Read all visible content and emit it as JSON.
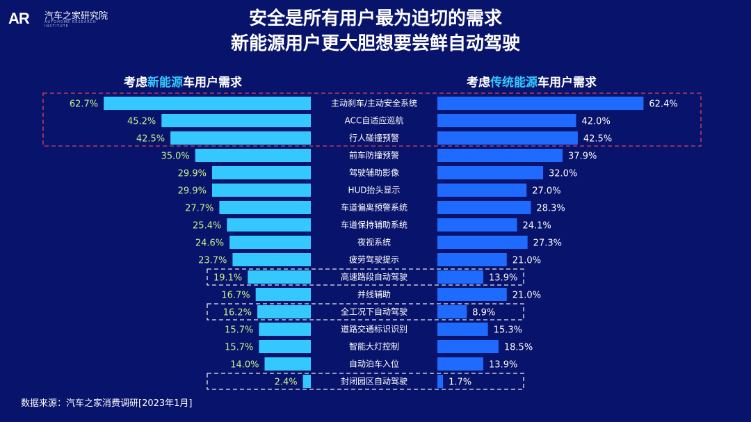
{
  "brand": {
    "mark": "AR",
    "name": "汽车之家研究院",
    "sub": "AUTOHOME RESEARCH INSTITUTE"
  },
  "title_line1": "安全是所有用户最为迫切的需求",
  "title_line2": "新能源用户更大胆想要尝鲜自动驾驶",
  "left_header": {
    "prefix": "考虑",
    "highlight": "新能源",
    "suffix": "车用户需求"
  },
  "right_header": {
    "prefix": "考虑",
    "highlight": "传统能源",
    "suffix": "车用户需求"
  },
  "source": "数据来源：汽车之家消费调研[2023年1月]",
  "colors": {
    "background": "#08136b",
    "left_bar": "#35c8ff",
    "right_bar": "#1f6bff",
    "left_label": "#c9f28a",
    "highlight_text": "#35c8ff",
    "red_box": "#e0405a",
    "white_box": "#e8e8e8"
  },
  "chart_data": {
    "type": "bar",
    "orientation": "horizontal-butterfly",
    "categories": [
      "主动刹车/主动安全系统",
      "ACC自适应巡航",
      "行人碰撞预警",
      "前车防撞预警",
      "驾驶辅助影像",
      "HUD抬头显示",
      "车道偏离预警系统",
      "车道保持辅助系统",
      "夜视系统",
      "疲劳驾驶提示",
      "高速路段自动驾驶",
      "并线辅助",
      "全工况下自动驾驶",
      "道路交通标识识别",
      "智能大灯控制",
      "自动泊车入位",
      "封闭园区自动驾驶"
    ],
    "series": [
      {
        "name": "考虑新能源车用户需求",
        "values": [
          62.7,
          45.2,
          42.5,
          35.0,
          29.9,
          29.9,
          27.7,
          25.4,
          24.6,
          23.7,
          19.1,
          16.7,
          16.2,
          15.7,
          15.7,
          14.0,
          2.4
        ]
      },
      {
        "name": "考虑传统能源车用户需求",
        "values": [
          62.4,
          42.0,
          42.5,
          37.9,
          32.0,
          27.0,
          28.3,
          24.1,
          27.3,
          21.0,
          13.9,
          21.0,
          8.9,
          15.3,
          18.5,
          13.9,
          1.7
        ]
      }
    ],
    "value_format": "percent-1dp",
    "highlight_groups": [
      {
        "style": "red-dashed",
        "indices": [
          0,
          1,
          2
        ]
      },
      {
        "style": "white-dashed",
        "indices": [
          10
        ]
      },
      {
        "style": "white-dashed",
        "indices": [
          12
        ]
      },
      {
        "style": "white-dashed",
        "indices": [
          16
        ]
      }
    ]
  }
}
